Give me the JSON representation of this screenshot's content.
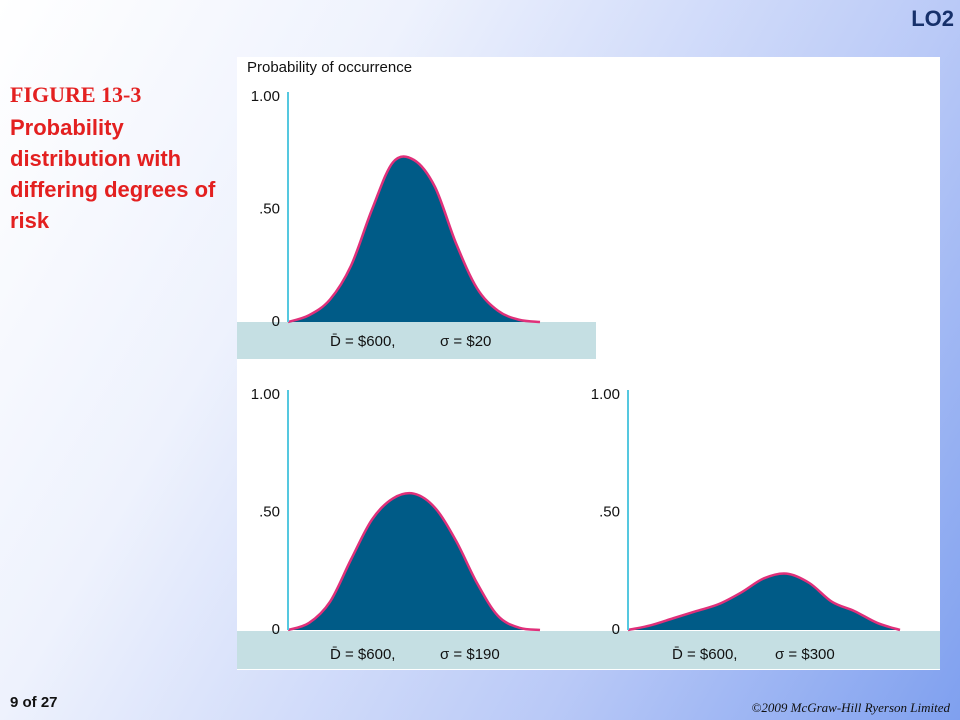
{
  "slide": {
    "lo": "LO2",
    "figure_label": "FIGURE 13-3",
    "figure_title": "Probability distribution with differing degrees of risk",
    "page": "9 of 27",
    "copyright": "©2009 McGraw-Hill Ryerson Limited"
  },
  "chart_data": [
    {
      "type": "area",
      "y_label": "Probability of occurrence",
      "mean_label": "D̄ = $600,",
      "sigma_label": "σ = $20",
      "values": [
        0,
        0.03,
        0.1,
        0.25,
        0.5,
        0.71,
        0.72,
        0.6,
        0.35,
        0.15,
        0.05,
        0.01,
        0
      ],
      "ylim": [
        0,
        1
      ],
      "yticks": [
        0,
        {
          "value": 0.5,
          "label": ".50"
        },
        {
          "value": 1,
          "label": "1.00"
        }
      ],
      "color": "#005b87",
      "line_color": "#e0307a"
    },
    {
      "type": "area",
      "mean_label": "D̄ = $600,",
      "sigma_label": "σ = $190",
      "values": [
        0,
        0.03,
        0.12,
        0.3,
        0.47,
        0.56,
        0.58,
        0.52,
        0.38,
        0.2,
        0.06,
        0.01,
        0
      ],
      "ylim": [
        0,
        1
      ],
      "yticks": [
        0,
        {
          "value": 0.5,
          "label": ".50"
        },
        {
          "value": 1,
          "label": "1.00"
        }
      ],
      "color": "#005b87",
      "line_color": "#e0307a"
    },
    {
      "type": "area",
      "mean_label": "D̄ = $600,",
      "sigma_label": "σ = $300",
      "values": [
        0,
        0.02,
        0.05,
        0.08,
        0.11,
        0.16,
        0.22,
        0.24,
        0.2,
        0.12,
        0.08,
        0.03,
        0
      ],
      "ylim": [
        0,
        1
      ],
      "yticks": [
        0,
        {
          "value": 0.5,
          "label": ".50"
        },
        {
          "value": 1,
          "label": "1.00"
        }
      ],
      "color": "#005b87",
      "line_color": "#e0307a"
    }
  ]
}
